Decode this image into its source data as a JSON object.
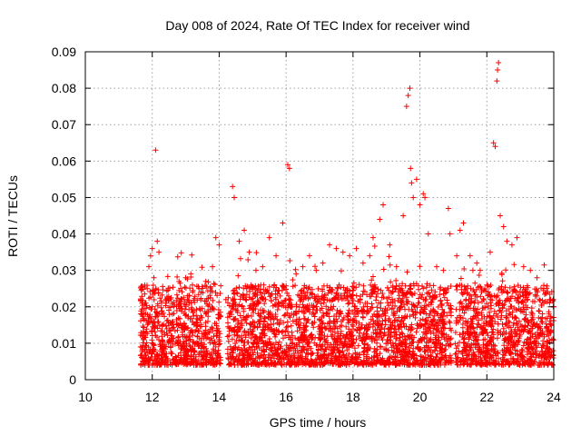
{
  "chart_data": {
    "type": "scatter",
    "title": "Day 008 of 2024, Rate Of TEC Index for receiver wind",
    "xlabel": "GPS time / hours",
    "ylabel": "ROTI / TECUs",
    "xlim": [
      10,
      24
    ],
    "ylim": [
      0,
      0.09
    ],
    "x_ticks": [
      10,
      12,
      14,
      16,
      18,
      20,
      22,
      24
    ],
    "x_tick_labels": [
      "10",
      "12",
      "14",
      "16",
      "18",
      "20",
      "22",
      "24"
    ],
    "y_ticks": [
      0,
      0.01,
      0.02,
      0.03,
      0.04,
      0.05,
      0.06,
      0.07,
      0.08,
      0.09
    ],
    "y_tick_labels": [
      "0",
      "0.01",
      "0.02",
      "0.03",
      "0.04",
      "0.05",
      "0.06",
      "0.07",
      "0.08",
      "0.09"
    ],
    "grid": true,
    "marker": "+",
    "color": "#ff0000",
    "series": [
      {
        "name": "ROTI",
        "points": [
          [
            11.7,
            0.012
          ],
          [
            11.75,
            0.006
          ],
          [
            11.8,
            0.018
          ],
          [
            11.85,
            0.025
          ],
          [
            11.9,
            0.031
          ],
          [
            11.95,
            0.034
          ],
          [
            12.0,
            0.036
          ],
          [
            12.05,
            0.028
          ],
          [
            12.1,
            0.063
          ],
          [
            12.15,
            0.038
          ],
          [
            12.2,
            0.035
          ],
          [
            12.3,
            0.015
          ],
          [
            12.4,
            0.022
          ],
          [
            12.6,
            0.018
          ],
          [
            12.8,
            0.027
          ],
          [
            13.0,
            0.028
          ],
          [
            13.2,
            0.026
          ],
          [
            13.4,
            0.025
          ],
          [
            13.6,
            0.027
          ],
          [
            13.8,
            0.031
          ],
          [
            13.9,
            0.039
          ],
          [
            14.0,
            0.037
          ],
          [
            14.2,
            0.022
          ],
          [
            14.4,
            0.053
          ],
          [
            14.45,
            0.05
          ],
          [
            14.6,
            0.038
          ],
          [
            14.75,
            0.041
          ],
          [
            14.9,
            0.035
          ],
          [
            15.1,
            0.03
          ],
          [
            15.3,
            0.031
          ],
          [
            15.5,
            0.039
          ],
          [
            15.7,
            0.034
          ],
          [
            15.9,
            0.043
          ],
          [
            16.05,
            0.059
          ],
          [
            16.1,
            0.058
          ],
          [
            16.3,
            0.029
          ],
          [
            16.5,
            0.031
          ],
          [
            16.7,
            0.034
          ],
          [
            16.9,
            0.03
          ],
          [
            17.1,
            0.032
          ],
          [
            17.3,
            0.037
          ],
          [
            17.5,
            0.036
          ],
          [
            17.7,
            0.035
          ],
          [
            17.9,
            0.034
          ],
          [
            18.1,
            0.036
          ],
          [
            18.3,
            0.032
          ],
          [
            18.5,
            0.034
          ],
          [
            18.6,
            0.039
          ],
          [
            18.8,
            0.044
          ],
          [
            18.9,
            0.048
          ],
          [
            19.1,
            0.037
          ],
          [
            19.3,
            0.031
          ],
          [
            19.5,
            0.045
          ],
          [
            19.6,
            0.075
          ],
          [
            19.65,
            0.078
          ],
          [
            19.7,
            0.08
          ],
          [
            19.72,
            0.058
          ],
          [
            19.75,
            0.054
          ],
          [
            19.8,
            0.05
          ],
          [
            19.9,
            0.055
          ],
          [
            20.0,
            0.048
          ],
          [
            20.1,
            0.051
          ],
          [
            20.15,
            0.05
          ],
          [
            20.25,
            0.04
          ],
          [
            20.5,
            0.031
          ],
          [
            20.7,
            0.03
          ],
          [
            20.85,
            0.047
          ],
          [
            20.9,
            0.04
          ],
          [
            21.1,
            0.034
          ],
          [
            21.2,
            0.041
          ],
          [
            21.3,
            0.043
          ],
          [
            21.5,
            0.034
          ],
          [
            21.7,
            0.032
          ],
          [
            21.8,
            0.03
          ],
          [
            22.0,
            0.026
          ],
          [
            22.1,
            0.035
          ],
          [
            22.2,
            0.065
          ],
          [
            22.25,
            0.064
          ],
          [
            22.3,
            0.082
          ],
          [
            22.32,
            0.085
          ],
          [
            22.35,
            0.087
          ],
          [
            22.4,
            0.045
          ],
          [
            22.5,
            0.042
          ],
          [
            22.6,
            0.038
          ],
          [
            22.75,
            0.037
          ],
          [
            22.9,
            0.039
          ],
          [
            23.1,
            0.031
          ],
          [
            23.3,
            0.03
          ],
          [
            23.5,
            0.028
          ],
          [
            23.7,
            0.025
          ],
          [
            23.9,
            0.022
          ],
          [
            24.0,
            0.02
          ]
        ]
      }
    ]
  }
}
